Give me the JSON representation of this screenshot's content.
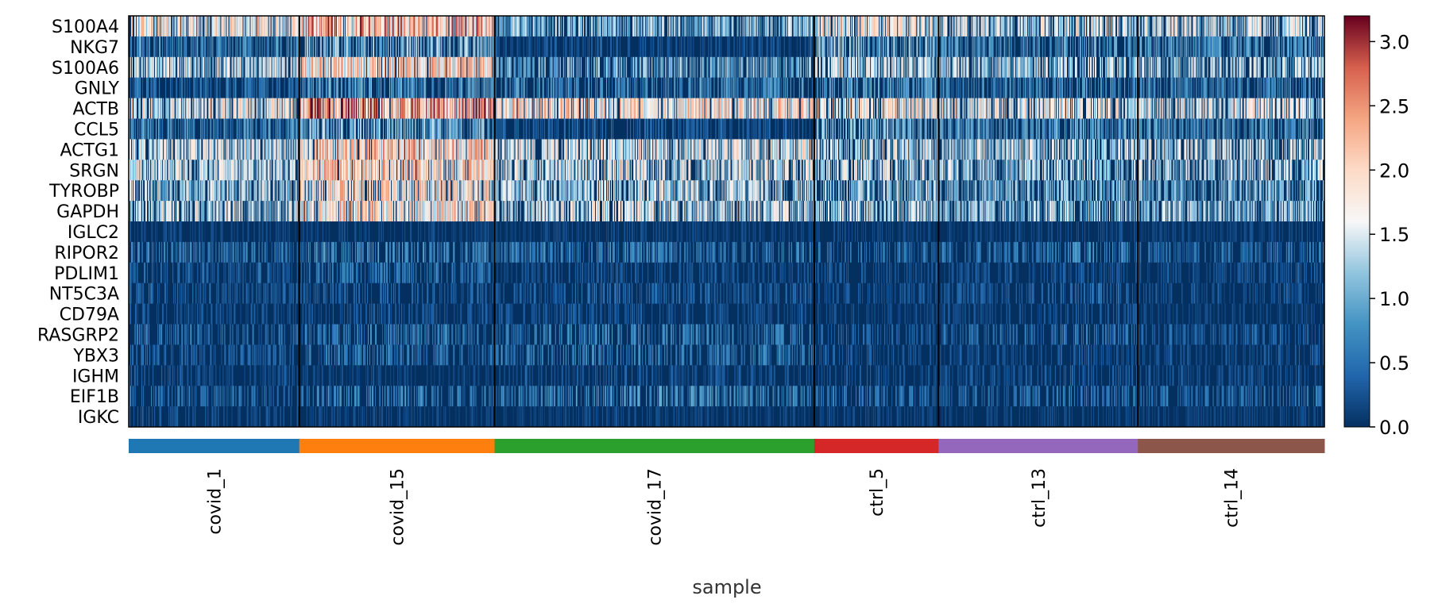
{
  "chart_data": {
    "type": "heatmap",
    "genes": [
      "S100A4",
      "NKG7",
      "S100A6",
      "GNLY",
      "ACTB",
      "CCL5",
      "ACTG1",
      "SRGN",
      "TYROBP",
      "GAPDH",
      "IGLC2",
      "RIPOR2",
      "PDLIM1",
      "NT5C3A",
      "CD79A",
      "RASGRP2",
      "YBX3",
      "IGHM",
      "EIF1B",
      "IGKC"
    ],
    "groups": [
      {
        "name": "covid_1",
        "cells": 214,
        "color": "#1f77b4",
        "mean_expression": [
          1.6,
          0.7,
          1.3,
          0.5,
          1.5,
          0.7,
          1.4,
          1.3,
          1.2,
          1.3,
          0.2,
          0.6,
          0.4,
          0.4,
          0.3,
          0.5,
          0.4,
          0.3,
          0.5,
          0.3
        ]
      },
      {
        "name": "covid_15",
        "cells": 245,
        "color": "#ff7f0e",
        "mean_expression": [
          2.1,
          1.0,
          1.8,
          0.8,
          2.3,
          1.0,
          1.9,
          1.8,
          1.7,
          1.8,
          0.2,
          0.7,
          0.5,
          0.4,
          0.3,
          0.6,
          0.5,
          0.2,
          0.6,
          0.2
        ]
      },
      {
        "name": "covid_17",
        "cells": 401,
        "color": "#2ca02c",
        "mean_expression": [
          1.1,
          0.3,
          1.0,
          0.7,
          1.8,
          0.4,
          1.5,
          1.4,
          1.3,
          1.4,
          0.2,
          0.6,
          0.3,
          0.4,
          0.3,
          0.6,
          0.6,
          0.3,
          0.7,
          0.2
        ]
      },
      {
        "name": "ctrl_5",
        "cells": 156,
        "color": "#d62728",
        "mean_expression": [
          1.5,
          1.0,
          1.3,
          0.8,
          1.6,
          1.0,
          1.4,
          1.3,
          1.1,
          1.2,
          0.2,
          0.5,
          0.3,
          0.3,
          0.2,
          0.4,
          0.3,
          0.3,
          0.5,
          0.2
        ]
      },
      {
        "name": "ctrl_13",
        "cells": 250,
        "color": "#9467bd",
        "mean_expression": [
          1.4,
          0.8,
          1.2,
          0.7,
          1.5,
          0.8,
          1.3,
          1.2,
          1.0,
          1.1,
          0.2,
          0.6,
          0.3,
          0.4,
          0.3,
          0.5,
          0.3,
          0.3,
          0.5,
          0.2
        ]
      },
      {
        "name": "ctrl_14",
        "cells": 234,
        "color": "#8c564b",
        "mean_expression": [
          1.4,
          0.8,
          1.2,
          0.7,
          1.5,
          0.8,
          1.3,
          1.2,
          1.0,
          1.1,
          0.2,
          0.5,
          0.3,
          0.3,
          0.2,
          0.4,
          0.3,
          0.3,
          0.5,
          0.2
        ]
      }
    ],
    "xlabel": "sample",
    "colormap": "RdBu_r",
    "vmin": 0.0,
    "vmax": 3.2,
    "colorbar_ticks": [
      "0.0",
      "0.5",
      "1.0",
      "1.5",
      "2.0",
      "2.5",
      "3.0"
    ],
    "colorbar_tick_values": [
      0.0,
      0.5,
      1.0,
      1.5,
      2.0,
      2.5,
      3.0
    ],
    "legend_placement": "right",
    "grid": false
  }
}
